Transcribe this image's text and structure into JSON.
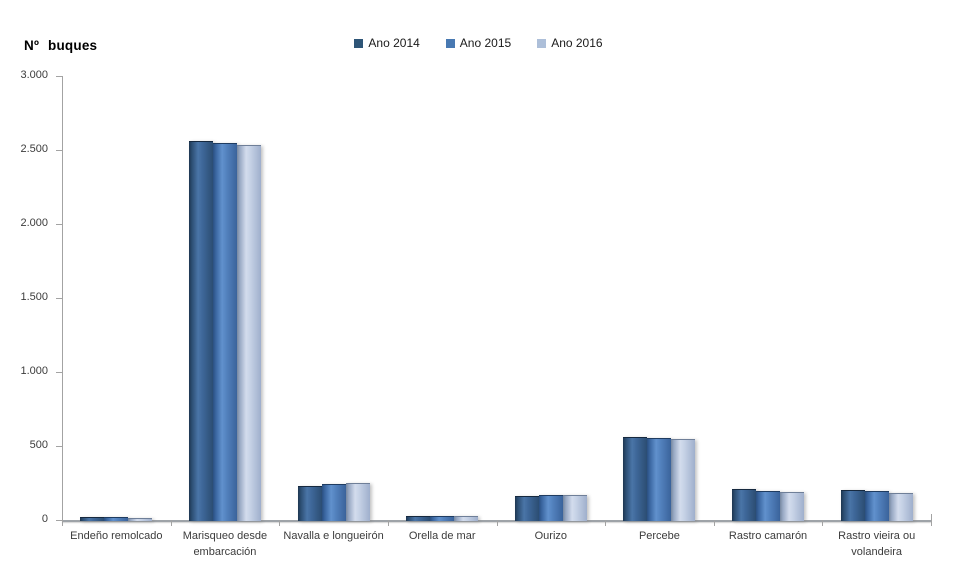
{
  "title": "Nº buques",
  "colors": {
    "axis": "#a3a3a3",
    "series_2014": "#2E5577",
    "series_2015": "#4879B2",
    "series_2016": "#ADBFD9",
    "text": "#3c3c3c"
  },
  "chart_data": {
    "type": "bar",
    "title": "Nº buques",
    "xlabel": "",
    "ylabel": "Nº buques",
    "ylim": [
      0,
      3000
    ],
    "grid": false,
    "legend_position": "top-center",
    "yticks": [
      "0",
      "500",
      "1.000",
      "1.500",
      "2.000",
      "2.500",
      "3.000"
    ],
    "ytick_values": [
      0,
      500,
      1000,
      1500,
      2000,
      2500,
      3000
    ],
    "categories": [
      "Endeño remolcado",
      "Marisqueo desde embarcación",
      "Navalla e longueirón",
      "Orella de mar",
      "Ourizo",
      "Percebe",
      "Rastro camarón",
      "Rastro vieira ou volandeira"
    ],
    "series": [
      {
        "name": "Ano 2014",
        "values": [
          20,
          2560,
          232,
          30,
          165,
          560,
          210,
          203
        ],
        "swatch": "#2E5577",
        "gradient": [
          "#1d3650",
          "#2c4e73",
          "#4a75a7",
          "#3f689a",
          "#2b4d72"
        ],
        "edge": "#16293f"
      },
      {
        "name": "Ano 2015",
        "values": [
          18,
          2550,
          243,
          30,
          166,
          556,
          199,
          193
        ],
        "swatch": "#4879B2",
        "gradient": [
          "#2a4f80",
          "#3a66a0",
          "#6191cd",
          "#5483bf",
          "#3a639b"
        ],
        "edge": "#1f3c61"
      },
      {
        "name": "Ano 2016",
        "values": [
          13,
          2535,
          250,
          28,
          172,
          546,
          188,
          185
        ],
        "swatch": "#ADBFD9",
        "gradient": [
          "#76879f",
          "#98a9c4",
          "#d3dced",
          "#c6d2e6",
          "#9fafcc"
        ],
        "edge": "#6f7f98"
      }
    ]
  }
}
